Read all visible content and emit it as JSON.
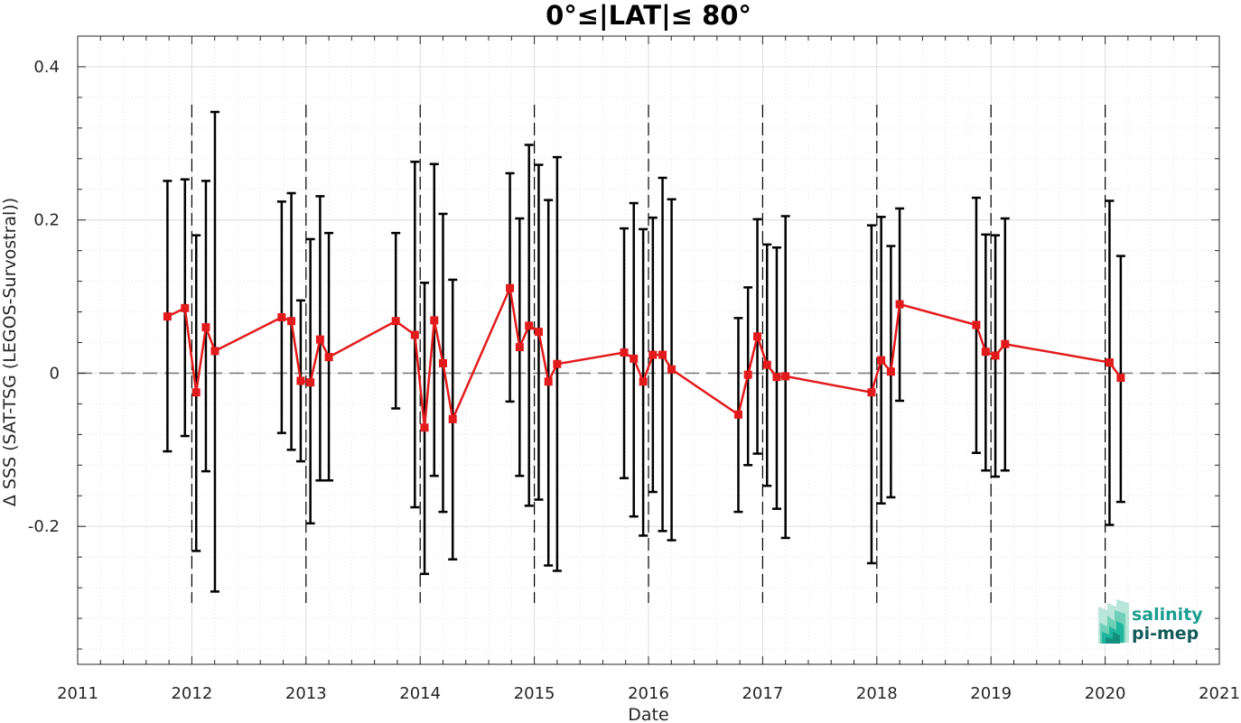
{
  "chart_data": {
    "type": "line",
    "title": "0°≤|LAT|≤ 80°",
    "xlabel": "Date",
    "ylabel": "Δ SSS (SAT-TSG (LEGOS-Survostral))",
    "x_ticks": [
      "2011",
      "2012",
      "2013",
      "2014",
      "2015",
      "2016",
      "2017",
      "2018",
      "2019",
      "2020",
      "2021"
    ],
    "y_ticks": [
      {
        "value": 0.4,
        "label": "0.4"
      },
      {
        "value": 0.2,
        "label": "0.2"
      },
      {
        "value": 0,
        "label": "0"
      },
      {
        "value": -0.2,
        "label": "-0.2"
      }
    ],
    "xlim": [
      "2011-01-01",
      "2021-01-01"
    ],
    "ylim": [
      -0.38,
      0.44
    ],
    "grid": true,
    "reference_line": {
      "y": 0,
      "style": "dashed"
    },
    "year_boundaries": [
      "2012-01-01",
      "2013-01-01",
      "2014-01-01",
      "2015-01-01",
      "2016-01-01",
      "2017-01-01",
      "2018-01-01",
      "2019-01-01",
      "2020-01-01"
    ],
    "series_color": "#e31a1c",
    "errorbar_color": "#000000",
    "points": [
      {
        "date": "2011-10-15",
        "y": 0.074,
        "lo": -0.102,
        "hi": 0.251
      },
      {
        "date": "2011-12-10",
        "y": 0.085,
        "lo": -0.082,
        "hi": 0.253
      },
      {
        "date": "2012-01-15",
        "y": -0.025,
        "lo": -0.232,
        "hi": 0.18
      },
      {
        "date": "2012-02-15",
        "y": 0.06,
        "lo": -0.128,
        "hi": 0.251
      },
      {
        "date": "2012-03-15",
        "y": 0.029,
        "lo": -0.285,
        "hi": 0.341
      },
      {
        "date": "2012-10-15",
        "y": 0.073,
        "lo": -0.078,
        "hi": 0.224
      },
      {
        "date": "2012-11-15",
        "y": 0.068,
        "lo": -0.1,
        "hi": 0.235
      },
      {
        "date": "2012-12-15",
        "y": -0.01,
        "lo": -0.115,
        "hi": 0.095
      },
      {
        "date": "2013-01-15",
        "y": -0.012,
        "lo": -0.196,
        "hi": 0.175
      },
      {
        "date": "2013-02-15",
        "y": 0.044,
        "lo": -0.14,
        "hi": 0.231
      },
      {
        "date": "2013-03-15",
        "y": 0.021,
        "lo": -0.14,
        "hi": 0.183
      },
      {
        "date": "2013-10-15",
        "y": 0.068,
        "lo": -0.046,
        "hi": 0.183
      },
      {
        "date": "2013-12-15",
        "y": 0.05,
        "lo": -0.175,
        "hi": 0.276
      },
      {
        "date": "2014-01-15",
        "y": -0.071,
        "lo": -0.262,
        "hi": 0.118
      },
      {
        "date": "2014-02-15",
        "y": 0.069,
        "lo": -0.134,
        "hi": 0.273
      },
      {
        "date": "2014-03-15",
        "y": 0.013,
        "lo": -0.181,
        "hi": 0.208
      },
      {
        "date": "2014-04-15",
        "y": -0.06,
        "lo": -0.243,
        "hi": 0.122
      },
      {
        "date": "2014-10-15",
        "y": 0.111,
        "lo": -0.037,
        "hi": 0.261
      },
      {
        "date": "2014-11-15",
        "y": 0.034,
        "lo": -0.134,
        "hi": 0.202
      },
      {
        "date": "2014-12-15",
        "y": 0.062,
        "lo": -0.173,
        "hi": 0.298
      },
      {
        "date": "2015-01-15",
        "y": 0.054,
        "lo": -0.165,
        "hi": 0.272
      },
      {
        "date": "2015-02-15",
        "y": -0.011,
        "lo": -0.251,
        "hi": 0.226
      },
      {
        "date": "2015-03-15",
        "y": 0.012,
        "lo": -0.258,
        "hi": 0.282
      },
      {
        "date": "2015-10-15",
        "y": 0.027,
        "lo": -0.137,
        "hi": 0.189
      },
      {
        "date": "2015-11-15",
        "y": 0.019,
        "lo": -0.187,
        "hi": 0.222
      },
      {
        "date": "2015-12-15",
        "y": -0.011,
        "lo": -0.212,
        "hi": 0.188
      },
      {
        "date": "2016-01-15",
        "y": 0.024,
        "lo": -0.155,
        "hi": 0.203
      },
      {
        "date": "2016-02-15",
        "y": 0.024,
        "lo": -0.206,
        "hi": 0.255
      },
      {
        "date": "2016-03-15",
        "y": 0.005,
        "lo": -0.218,
        "hi": 0.227
      },
      {
        "date": "2016-10-15",
        "y": -0.054,
        "lo": -0.181,
        "hi": 0.072
      },
      {
        "date": "2016-11-15",
        "y": -0.002,
        "lo": -0.12,
        "hi": 0.112
      },
      {
        "date": "2016-12-15",
        "y": 0.048,
        "lo": -0.105,
        "hi": 0.201
      },
      {
        "date": "2017-01-15",
        "y": 0.011,
        "lo": -0.147,
        "hi": 0.168
      },
      {
        "date": "2017-02-15",
        "y": -0.005,
        "lo": -0.177,
        "hi": 0.164
      },
      {
        "date": "2017-03-15",
        "y": -0.004,
        "lo": -0.215,
        "hi": 0.205
      },
      {
        "date": "2017-12-15",
        "y": -0.025,
        "lo": -0.248,
        "hi": 0.193
      },
      {
        "date": "2018-01-15",
        "y": 0.017,
        "lo": -0.17,
        "hi": 0.204
      },
      {
        "date": "2018-02-15",
        "y": 0.002,
        "lo": -0.162,
        "hi": 0.166
      },
      {
        "date": "2018-03-15",
        "y": 0.09,
        "lo": -0.036,
        "hi": 0.215
      },
      {
        "date": "2018-11-15",
        "y": 0.063,
        "lo": -0.104,
        "hi": 0.229
      },
      {
        "date": "2018-12-15",
        "y": 0.028,
        "lo": -0.127,
        "hi": 0.181
      },
      {
        "date": "2019-01-15",
        "y": 0.023,
        "lo": -0.135,
        "hi": 0.18
      },
      {
        "date": "2019-02-15",
        "y": 0.038,
        "lo": -0.127,
        "hi": 0.202
      },
      {
        "date": "2020-01-15",
        "y": 0.014,
        "lo": -0.198,
        "hi": 0.225
      },
      {
        "date": "2020-02-20",
        "y": -0.006,
        "lo": -0.168,
        "hi": 0.153
      }
    ]
  },
  "logo": {
    "line1": "salinity",
    "line2": "pi-mep",
    "colors": {
      "line1": "#1a9e8f",
      "line2": "#145a5a",
      "mark": "#1fb59c"
    }
  }
}
